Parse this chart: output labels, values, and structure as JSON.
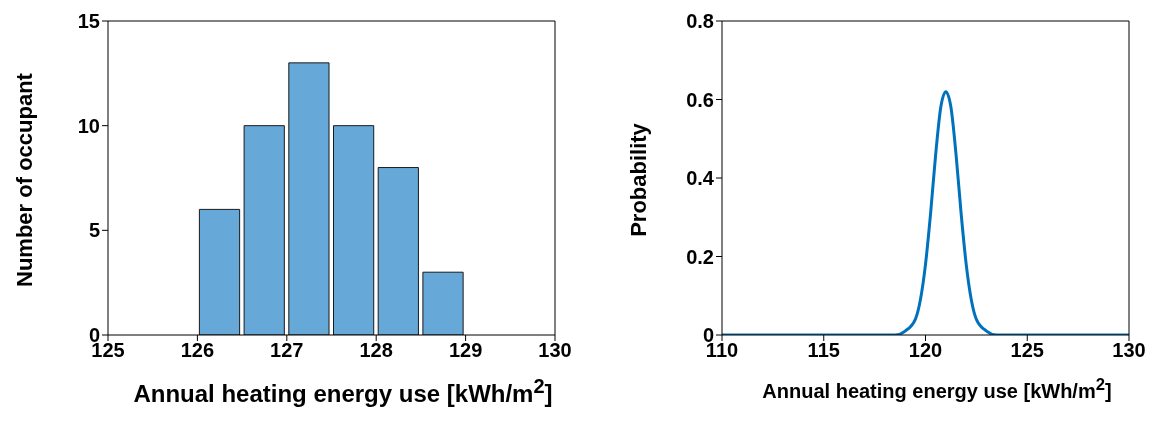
{
  "chart_data": [
    {
      "type": "histogram",
      "xlabel": "Annual heating energy use [kWh/m$^{2}$]",
      "ylabel": "Number of occupant",
      "bins": [
        126,
        126.5,
        127,
        127.5,
        128,
        128.5,
        129
      ],
      "values": [
        6,
        10,
        13,
        10,
        8,
        3
      ],
      "color": "#66a9d9",
      "xlim": [
        125,
        130
      ],
      "xticks": [
        125,
        126,
        127,
        128,
        129,
        130
      ],
      "ylim": [
        0,
        15
      ],
      "yticks": [
        0,
        5,
        10,
        15
      ],
      "grid": false
    },
    {
      "type": "line",
      "xlabel": "Annual heating energy use [kWh/m$^{2}$]",
      "ylabel": "Probability",
      "x": [
        110,
        118,
        118.5,
        119,
        119.5,
        120,
        120.25,
        120.5,
        120.75,
        121,
        121.25,
        121.5,
        121.75,
        122,
        122.5,
        123,
        123.5,
        124,
        130
      ],
      "series": [
        {
          "color": "#0072bd",
          "values": [
            0,
            0,
            0,
            0.01,
            0.04,
            0.18,
            0.31,
            0.46,
            0.58,
            0.62,
            0.58,
            0.46,
            0.31,
            0.18,
            0.04,
            0.01,
            0,
            0,
            0
          ]
        }
      ],
      "xlim": [
        110,
        130
      ],
      "xticks": [
        110,
        115,
        120,
        125,
        130
      ],
      "ylim": [
        0,
        0.8
      ],
      "yticks": [
        0,
        0.2,
        0.4,
        0.6,
        0.8
      ],
      "grid": false,
      "line_style": "solid",
      "marker": "none"
    }
  ]
}
